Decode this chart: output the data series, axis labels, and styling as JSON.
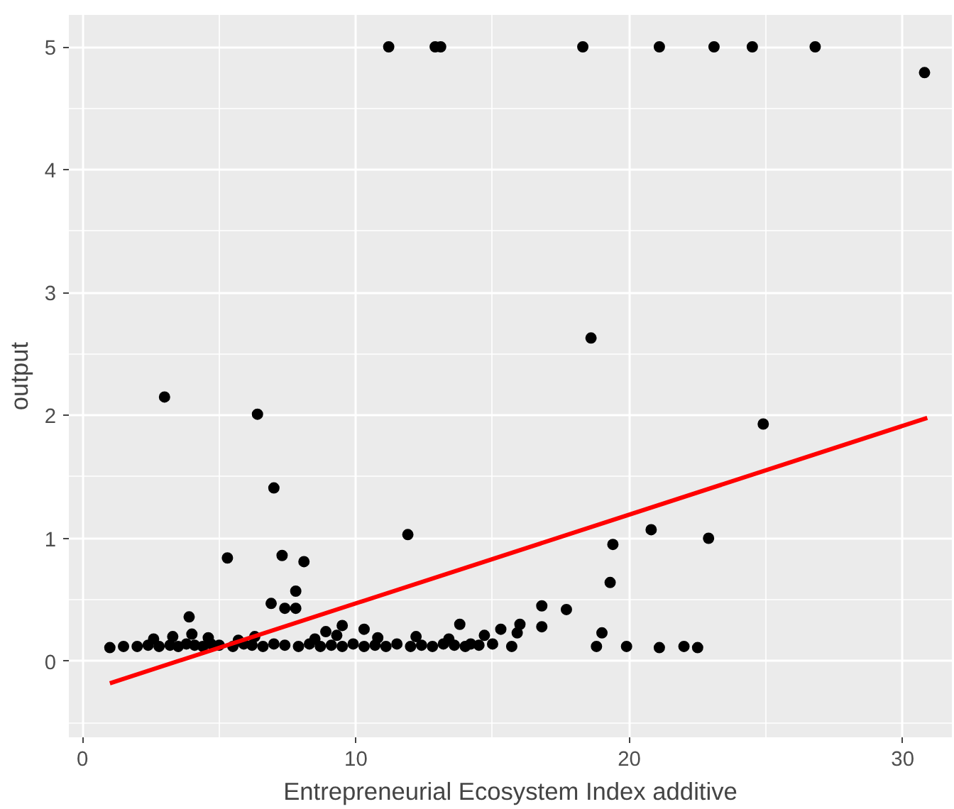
{
  "chart_data": {
    "type": "scatter",
    "xlabel": "Entrepreneurial Ecosystem Index additive",
    "ylabel": "output",
    "xlim": [
      -0.5,
      31.8
    ],
    "ylim": [
      -0.62,
      5.26
    ],
    "xticks": [
      0,
      10,
      20,
      30
    ],
    "yticks": [
      0,
      1,
      2,
      3,
      4,
      5
    ],
    "grid": true,
    "series": [
      {
        "marker": "circle",
        "color": "#000000",
        "x": [
          11.2,
          12.9,
          13.1,
          18.3,
          21.1,
          23.1,
          24.5,
          26.8,
          30.8,
          3.0,
          6.4,
          7.0,
          18.6,
          24.9,
          11.9,
          20.8,
          22.9,
          19.4,
          19.3,
          5.3,
          7.3,
          8.1,
          7.8,
          6.9,
          7.4,
          7.8,
          3.9,
          8.9,
          9.5,
          10.3,
          13.8,
          15.3,
          16.8,
          17.7,
          16.0,
          16.8,
          15.9,
          19.0,
          18.8,
          19.9,
          21.1,
          22.0,
          22.5,
          15.7,
          14.2,
          1.0,
          1.5,
          2.0,
          2.4,
          2.8,
          3.2,
          3.5,
          3.8,
          4.1,
          4.4,
          4.7,
          5.0,
          5.5,
          5.9,
          6.2,
          6.6,
          7.0,
          7.4,
          7.9,
          8.3,
          8.7,
          9.1,
          9.5,
          9.9,
          10.3,
          10.7,
          11.1,
          11.5,
          12.0,
          12.4,
          12.8,
          13.2,
          13.6,
          14.0,
          14.5,
          15.0,
          2.6,
          3.3,
          4.0,
          4.6,
          5.7,
          6.3,
          8.5,
          9.3,
          10.8,
          12.2,
          13.4,
          14.7
        ],
        "values": [
          5,
          5,
          5,
          5,
          5,
          5,
          5,
          5,
          4.79,
          2.15,
          2.01,
          1.41,
          2.63,
          1.93,
          1.03,
          1.07,
          1.0,
          0.95,
          0.64,
          0.84,
          0.86,
          0.81,
          0.57,
          0.47,
          0.43,
          0.43,
          0.36,
          0.24,
          0.29,
          0.26,
          0.3,
          0.26,
          0.45,
          0.42,
          0.3,
          0.28,
          0.23,
          0.23,
          0.12,
          0.12,
          0.11,
          0.12,
          0.11,
          0.12,
          0.14,
          0.11,
          0.12,
          0.12,
          0.13,
          0.12,
          0.13,
          0.12,
          0.14,
          0.13,
          0.12,
          0.14,
          0.13,
          0.12,
          0.14,
          0.13,
          0.12,
          0.14,
          0.13,
          0.12,
          0.14,
          0.12,
          0.13,
          0.12,
          0.14,
          0.12,
          0.13,
          0.12,
          0.14,
          0.12,
          0.13,
          0.12,
          0.14,
          0.13,
          0.12,
          0.13,
          0.14,
          0.18,
          0.2,
          0.22,
          0.19,
          0.17,
          0.2,
          0.18,
          0.21,
          0.19,
          0.2,
          0.18,
          0.21
        ]
      },
      {
        "type": "line",
        "color": "#ff0000",
        "x": [
          1.0,
          30.9
        ],
        "values": [
          -0.18,
          1.98
        ]
      }
    ]
  }
}
